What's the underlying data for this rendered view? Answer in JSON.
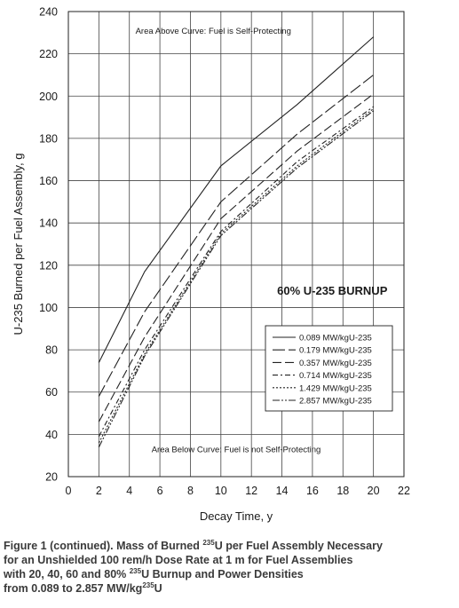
{
  "chart_data": {
    "type": "line",
    "xlabel": "Decay Time, y",
    "ylabel": "U-235 Burned per Fuel Assembly, g",
    "xlim": [
      0,
      22
    ],
    "ylim": [
      20,
      240
    ],
    "x_ticks": [
      "0",
      "2",
      "4",
      "6",
      "8",
      "10",
      "12",
      "14",
      "16",
      "18",
      "20",
      "22"
    ],
    "y_ticks": [
      "20",
      "40",
      "60",
      "80",
      "100",
      "120",
      "140",
      "160",
      "180",
      "200",
      "220",
      "240"
    ],
    "grid": true,
    "legend_position": "center-right",
    "annotation_top": "Area Above Curve: Fuel is Self-Protecting",
    "annotation_bottom": "Area Below Curve: Fuel is not Self-Protecting",
    "burnup_label": "60% U-235 BURNUP",
    "x": [
      2,
      5,
      10,
      15,
      20
    ],
    "series": [
      {
        "name": "0.089 MW/kgU-235",
        "dash": "",
        "values": [
          74,
          117,
          167,
          196,
          228
        ]
      },
      {
        "name": "0.179 MW/kgU-235",
        "dash": "14,4",
        "values": [
          58,
          98,
          150,
          182,
          210
        ]
      },
      {
        "name": "0.357 MW/kgU-235",
        "dash": "10,4",
        "values": [
          46,
          86,
          142,
          174,
          201
        ]
      },
      {
        "name": "0.714 MW/kgU-235",
        "dash": "6,3,2,3",
        "values": [
          39,
          80,
          136,
          169,
          195
        ]
      },
      {
        "name": "1.429 MW/kgU-235",
        "dash": "2,2",
        "values": [
          36,
          78,
          135,
          167,
          194
        ]
      },
      {
        "name": "2.857 MW/kgU-235",
        "dash": "8,2,2,2,2,2",
        "values": [
          34,
          77,
          134,
          166,
          193
        ]
      }
    ]
  },
  "caption": {
    "line1_a": "Figure 1 (continued).  Mass of Burned ",
    "line1_sup": "235",
    "line1_b": "U per Fuel Assembly Necessary",
    "line2": "for an Unshielded 100 rem/h Dose Rate at 1 m for Fuel Assemblies",
    "line3_a": "with 20, 40, 60 and 80% ",
    "line3_sup": "235",
    "line3_b": "U Burnup and Power Densities",
    "line4_a": "from 0.089 to 2.857 MW/kg",
    "line4_sup": "235",
    "line4_b": "U"
  }
}
